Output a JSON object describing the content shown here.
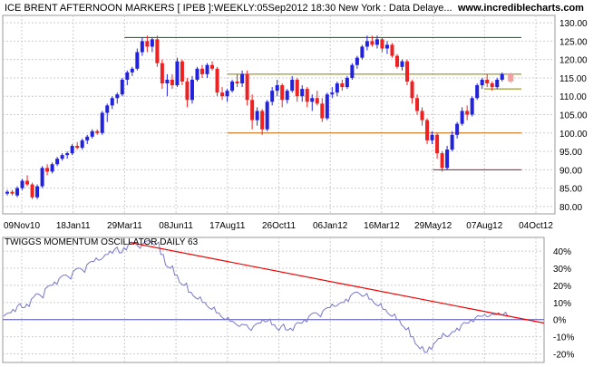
{
  "header": {
    "title": "ICE BRENT AFTERNOON MARKERS [ IPEB ]:WEEKLY:05Sep2012 18:30 New York : Data Delaye...",
    "site": "www.incrediblecharts.com"
  },
  "oscillator_title": "TWIGGS MOMENTUM OSCILLATOR DAILY 63",
  "colors": {
    "up_candle": "#2222dd",
    "down_candle": "#ee2222",
    "projected_candle": "#f5a0a0",
    "resistance_line": "#006600",
    "mid_line": "#808000",
    "support_line": "#cc6600",
    "low_line": "#cc0033",
    "oscillator_line": "#7777cc",
    "trend_line": "#ee0000",
    "zero_line": "#5555bb",
    "grid": "#cccccc"
  },
  "chart_data": [
    {
      "type": "candlestick",
      "title": "ICE BRENT AFTERNOON MARKERS [ IPEB ]:WEEKLY",
      "x_tick_labels": [
        "09Nov10",
        "18Jan11",
        "29Mar11",
        "08Jun11",
        "17Aug11",
        "26Oct11",
        "06Jan12",
        "16Mar12",
        "29May12",
        "07Aug12",
        "04Oct12"
      ],
      "y_tick_labels": [
        "80.00",
        "85.00",
        "90.00",
        "95.00",
        "100.00",
        "105.00",
        "110.00",
        "115.00",
        "120.00",
        "125.00",
        "130.00"
      ],
      "ylim": [
        78,
        132
      ],
      "horizontal_lines": [
        {
          "value": 126,
          "style": "resistance",
          "from": "29Mar11",
          "to": "04Oct12"
        },
        {
          "value": 116,
          "style": "mid",
          "from": "17Aug11",
          "to": "04Oct12"
        },
        {
          "value": 112,
          "style": "mid",
          "from": "07Aug12",
          "to": "04Oct12"
        },
        {
          "value": 100,
          "style": "support",
          "from": "17Aug11",
          "to": "04Oct12"
        },
        {
          "value": 90,
          "style": "low",
          "from": "29May12",
          "to": "04Oct12"
        }
      ],
      "candles": [
        [
          83.5,
          84.5,
          83.0,
          84.0
        ],
        [
          84.0,
          84.5,
          83.0,
          83.5
        ],
        [
          83.0,
          85.5,
          82.5,
          85.0
        ],
        [
          85.0,
          87.5,
          84.5,
          87.0
        ],
        [
          87.0,
          88.5,
          85.5,
          86.0
        ],
        [
          86.0,
          86.5,
          82.0,
          82.5
        ],
        [
          82.5,
          86.0,
          82.0,
          85.5
        ],
        [
          85.5,
          91.0,
          85.0,
          90.5
        ],
        [
          90.5,
          91.5,
          88.5,
          89.5
        ],
        [
          89.5,
          92.0,
          89.0,
          91.5
        ],
        [
          91.5,
          93.5,
          91.0,
          93.0
        ],
        [
          93.0,
          94.5,
          92.5,
          94.0
        ],
        [
          94.0,
          95.0,
          93.0,
          94.5
        ],
        [
          94.5,
          97.0,
          94.0,
          96.5
        ],
        [
          96.5,
          97.5,
          95.5,
          96.0
        ],
        [
          96.0,
          98.5,
          95.5,
          98.0
        ],
        [
          98.0,
          99.5,
          97.0,
          99.0
        ],
        [
          99.0,
          101.0,
          98.5,
          100.5
        ],
        [
          100.5,
          101.0,
          99.5,
          100.0
        ],
        [
          100.0,
          106.0,
          99.5,
          105.5
        ],
        [
          105.5,
          108.0,
          103.0,
          107.5
        ],
        [
          107.5,
          110.0,
          106.5,
          109.5
        ],
        [
          109.5,
          111.0,
          108.0,
          110.5
        ],
        [
          110.5,
          115.0,
          110.0,
          114.5
        ],
        [
          114.5,
          117.0,
          113.0,
          116.5
        ],
        [
          116.5,
          118.0,
          115.5,
          117.5
        ],
        [
          117.5,
          123.0,
          117.0,
          122.0
        ],
        [
          122.0,
          126.0,
          121.0,
          125.0
        ],
        [
          125.0,
          126.5,
          122.0,
          123.5
        ],
        [
          123.5,
          126.0,
          122.0,
          125.5
        ],
        [
          125.5,
          126.5,
          118.0,
          119.0
        ],
        [
          119.0,
          120.0,
          112.0,
          113.5
        ],
        [
          113.5,
          116.0,
          110.0,
          114.5
        ],
        [
          114.5,
          116.0,
          112.0,
          113.0
        ],
        [
          113.0,
          120.5,
          112.5,
          119.5
        ],
        [
          119.5,
          120.0,
          113.0,
          114.0
        ],
        [
          114.0,
          115.0,
          107.0,
          109.0
        ],
        [
          109.0,
          115.5,
          108.0,
          114.5
        ],
        [
          114.5,
          118.0,
          114.0,
          117.5
        ],
        [
          117.5,
          118.5,
          115.0,
          116.0
        ],
        [
          116.0,
          119.0,
          115.0,
          118.5
        ],
        [
          118.5,
          119.5,
          117.0,
          117.5
        ],
        [
          117.5,
          118.0,
          110.0,
          111.0
        ],
        [
          111.0,
          112.5,
          109.0,
          110.0
        ],
        [
          110.0,
          112.0,
          108.5,
          111.5
        ],
        [
          111.5,
          114.5,
          111.0,
          114.0
        ],
        [
          114.0,
          116.0,
          112.5,
          113.5
        ],
        [
          113.5,
          117.0,
          112.5,
          116.0
        ],
        [
          116.0,
          117.0,
          107.5,
          109.0
        ],
        [
          109.0,
          110.5,
          101.0,
          103.5
        ],
        [
          103.5,
          107.0,
          102.0,
          106.0
        ],
        [
          106.0,
          106.5,
          99.5,
          101.0
        ],
        [
          101.0,
          109.0,
          100.5,
          108.5
        ],
        [
          108.5,
          112.5,
          107.5,
          111.5
        ],
        [
          111.5,
          114.5,
          110.0,
          113.0
        ],
        [
          113.0,
          113.5,
          107.0,
          109.0
        ],
        [
          109.0,
          112.0,
          108.0,
          111.5
        ],
        [
          111.5,
          115.5,
          111.0,
          114.5
        ],
        [
          114.5,
          115.0,
          108.5,
          110.0
        ],
        [
          110.0,
          113.0,
          108.5,
          112.0
        ],
        [
          112.0,
          112.5,
          107.0,
          108.5
        ],
        [
          108.5,
          110.5,
          106.0,
          109.5
        ],
        [
          109.5,
          111.5,
          107.5,
          108.0
        ],
        [
          108.0,
          109.5,
          103.0,
          104.0
        ],
        [
          104.0,
          111.0,
          103.5,
          110.5
        ],
        [
          110.5,
          112.5,
          109.5,
          111.0
        ],
        [
          111.0,
          114.0,
          110.0,
          113.5
        ],
        [
          113.5,
          114.5,
          111.5,
          112.5
        ],
        [
          112.5,
          115.5,
          112.0,
          115.0
        ],
        [
          115.0,
          119.0,
          114.5,
          118.5
        ],
        [
          118.5,
          121.0,
          117.5,
          120.5
        ],
        [
          120.5,
          124.0,
          120.0,
          123.5
        ],
        [
          123.5,
          126.5,
          122.5,
          125.0
        ],
        [
          125.0,
          126.5,
          123.5,
          124.0
        ],
        [
          124.0,
          126.5,
          123.0,
          125.5
        ],
        [
          125.5,
          126.0,
          122.0,
          123.0
        ],
        [
          123.0,
          125.0,
          121.5,
          124.0
        ],
        [
          124.0,
          124.5,
          120.5,
          121.0
        ],
        [
          121.0,
          121.5,
          117.5,
          118.0
        ],
        [
          118.0,
          120.0,
          117.0,
          119.5
        ],
        [
          119.5,
          120.0,
          113.0,
          114.0
        ],
        [
          114.0,
          114.5,
          108.0,
          109.5
        ],
        [
          109.5,
          110.5,
          105.0,
          106.0
        ],
        [
          106.0,
          107.0,
          102.0,
          103.5
        ],
        [
          103.5,
          104.0,
          97.0,
          98.0
        ],
        [
          98.0,
          100.5,
          97.0,
          99.5
        ],
        [
          99.5,
          100.0,
          93.0,
          94.5
        ],
        [
          94.5,
          95.0,
          89.5,
          90.5
        ],
        [
          90.5,
          96.5,
          90.0,
          95.5
        ],
        [
          95.5,
          100.5,
          95.0,
          99.5
        ],
        [
          99.5,
          103.0,
          98.5,
          102.5
        ],
        [
          102.5,
          107.0,
          102.0,
          106.0
        ],
        [
          106.0,
          107.5,
          103.5,
          105.0
        ],
        [
          105.0,
          110.0,
          104.5,
          109.5
        ],
        [
          109.5,
          113.5,
          109.0,
          113.0
        ],
        [
          113.0,
          115.0,
          112.0,
          114.5
        ],
        [
          114.5,
          116.0,
          112.5,
          113.5
        ],
        [
          113.5,
          114.0,
          111.5,
          112.5
        ],
        [
          112.5,
          115.0,
          112.0,
          114.5
        ],
        [
          114.5,
          116.5,
          114.0,
          116.0
        ]
      ],
      "projected_candle": [
        116.0,
        116.5,
        113.5,
        114.0
      ]
    },
    {
      "type": "line",
      "title": "TWIGGS MOMENTUM OSCILLATOR DAILY 63",
      "y_tick_labels": [
        "40%",
        "30%",
        "20%",
        "10%",
        "0%",
        "-10%",
        "-20%"
      ],
      "ylim": [
        -25,
        48
      ],
      "zero_line": 0,
      "trend_line": {
        "from": {
          "x": "29Mar11",
          "y": 45
        },
        "to": {
          "x": "04Oct12",
          "y": -2
        }
      },
      "values": [
        2,
        4,
        6,
        8,
        7,
        9,
        12,
        15,
        14,
        18,
        20,
        22,
        24,
        26,
        25,
        28,
        30,
        29,
        32,
        34,
        36,
        35,
        38,
        40,
        41,
        39,
        42,
        44,
        45,
        43,
        44,
        46,
        45,
        44,
        38,
        32,
        30,
        26,
        22,
        20,
        16,
        14,
        12,
        10,
        8,
        6,
        4,
        2,
        0,
        -1,
        -2,
        -4,
        -3,
        -5,
        -4,
        -2,
        0,
        -1,
        -3,
        -5,
        -4,
        -6,
        -5,
        -3,
        -2,
        0,
        2,
        4,
        3,
        5,
        7,
        9,
        8,
        10,
        12,
        14,
        16,
        15,
        14,
        12,
        10,
        8,
        6,
        4,
        2,
        0,
        -3,
        -6,
        -10,
        -14,
        -17,
        -19,
        -16,
        -14,
        -11,
        -8,
        -10,
        -7,
        -5,
        -3,
        -2,
        0,
        1,
        2,
        3,
        2,
        3,
        4,
        3,
        2
      ]
    }
  ]
}
